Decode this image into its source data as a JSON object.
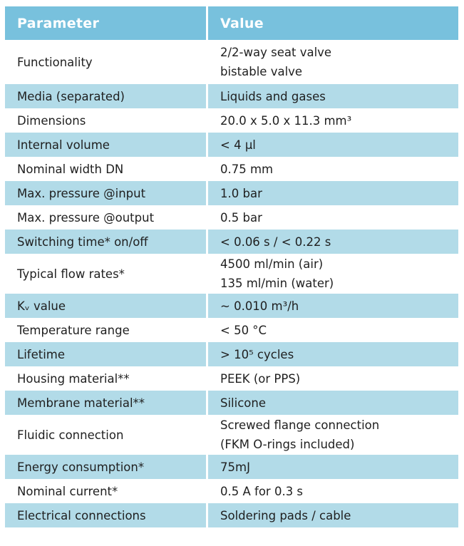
{
  "table": {
    "header_parameter": "Parameter",
    "header_value": "Value",
    "rows": [
      {
        "parameter": "Functionality",
        "value_lines": [
          "2/2-way seat valve",
          "bistable valve"
        ]
      },
      {
        "parameter": "Media (separated)",
        "value_lines": [
          "Liquids and gases"
        ]
      },
      {
        "parameter": "Dimensions",
        "value_lines": [
          "20.0 x 5.0 x 11.3 mm³"
        ]
      },
      {
        "parameter": "Internal volume",
        "value_lines": [
          "< 4 µl"
        ]
      },
      {
        "parameter": "Nominal width DN",
        "value_lines": [
          "0.75 mm"
        ]
      },
      {
        "parameter": "Max. pressure @input",
        "value_lines": [
          "1.0 bar"
        ]
      },
      {
        "parameter": "Max. pressure @output",
        "value_lines": [
          "0.5 bar"
        ]
      },
      {
        "parameter": "Switching time* on/off",
        "value_lines": [
          "< 0.06 s / < 0.22 s"
        ]
      },
      {
        "parameter": "Typical flow rates*",
        "value_lines": [
          "4500 ml/min (air)",
          "135 ml/min (water)"
        ]
      },
      {
        "parameter": "Kᵥ value",
        "value_lines": [
          "~ 0.010 m³/h"
        ]
      },
      {
        "parameter": "Temperature range",
        "value_lines": [
          "< 50 °C"
        ]
      },
      {
        "parameter": "Lifetime",
        "value_lines": [
          "> 10⁵ cycles"
        ]
      },
      {
        "parameter": "Housing material**",
        "value_lines": [
          "PEEK (or PPS)"
        ]
      },
      {
        "parameter": "Membrane material**",
        "value_lines": [
          "Silicone"
        ]
      },
      {
        "parameter": "Fluidic connection",
        "value_lines": [
          "Screwed flange connection",
          "(FKM O-rings included)"
        ]
      },
      {
        "parameter": "Energy consumption*",
        "value_lines": [
          "75mJ"
        ]
      },
      {
        "parameter": "Nominal current*",
        "value_lines": [
          "0.5 A for 0.3 s"
        ]
      },
      {
        "parameter": "Electrical connections",
        "value_lines": [
          "Soldering pads / cable"
        ]
      }
    ]
  },
  "colors": {
    "header_bg": "#78c1dd",
    "shaded_row_bg": "#b2dbe8",
    "plain_row_bg": "#ffffff"
  }
}
